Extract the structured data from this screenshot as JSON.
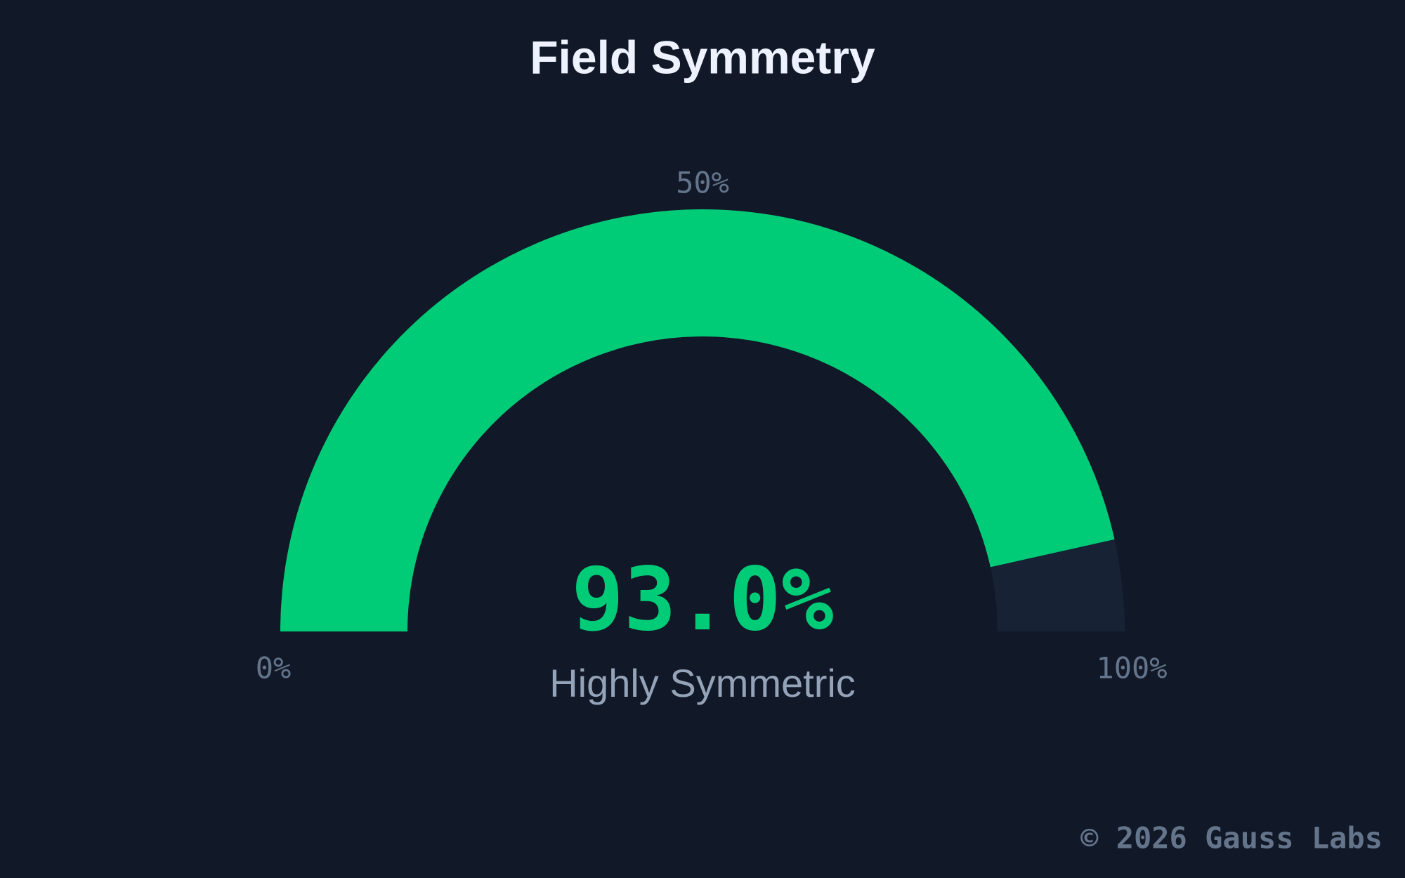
{
  "chart_data": {
    "type": "gauge",
    "title": "Field Symmetry",
    "values": [
      93.0
    ],
    "value_labels": [
      "93.0%"
    ],
    "status_label": "Highly Symmetric",
    "color": "#00cc78",
    "track_color": "#172234",
    "ylim": [
      0,
      100
    ],
    "yticks": [
      {
        "value": 0,
        "label": "0%"
      },
      {
        "value": 50,
        "label": "50%"
      },
      {
        "value": 100,
        "label": "100%"
      }
    ]
  },
  "footer": "© 2026 Gauss Labs"
}
